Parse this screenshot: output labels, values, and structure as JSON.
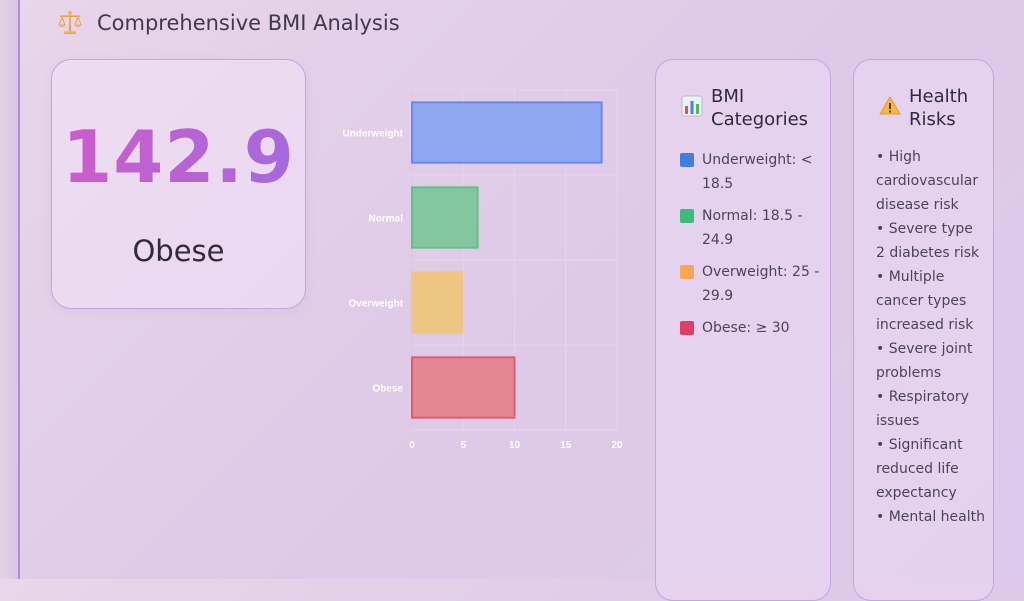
{
  "header": {
    "title": "Comprehensive BMI Analysis",
    "icon": "balance-scale-icon"
  },
  "bmi": {
    "value": "142.9",
    "category": "Obese"
  },
  "chart_data": {
    "type": "bar",
    "orientation": "horizontal",
    "categories": [
      "Underweight",
      "Normal",
      "Overweight",
      "Obese"
    ],
    "values": [
      18.5,
      6.4,
      4.9,
      10
    ],
    "colors": [
      "#8ea7f0",
      "#82c7a0",
      "#edc682",
      "#e58694"
    ],
    "border_colors": [
      "#6d88ec",
      "#5fc28a",
      "#f0c680",
      "#e45b6e"
    ],
    "xlim": [
      0,
      20
    ],
    "x_ticks": [
      "0",
      "5",
      "10",
      "15",
      "20"
    ],
    "grid": true
  },
  "categories_panel": {
    "title_line1": "BMI",
    "title_line2": "Categories",
    "icon": "bar-chart-icon",
    "items": [
      {
        "label": "Underweight: < 18.5",
        "color": "#3f7fe0"
      },
      {
        "label": "Normal: 18.5 - 24.9",
        "color": "#3bbd7a"
      },
      {
        "label": "Overweight: 25 - 29.9",
        "color": "#f5a84e"
      },
      {
        "label": "Obese: ≥ 30",
        "color": "#df3f67"
      }
    ]
  },
  "risks_panel": {
    "title_line1": "Health",
    "title_line2": "Risks",
    "icon": "warning-icon",
    "items": [
      "• High cardiovascular disease risk",
      "• Severe type 2 diabetes risk",
      "• Multiple cancer types increased risk",
      "• Severe joint problems",
      "• Respiratory issues",
      "• Significant reduced life expectancy",
      "• Mental health"
    ]
  }
}
